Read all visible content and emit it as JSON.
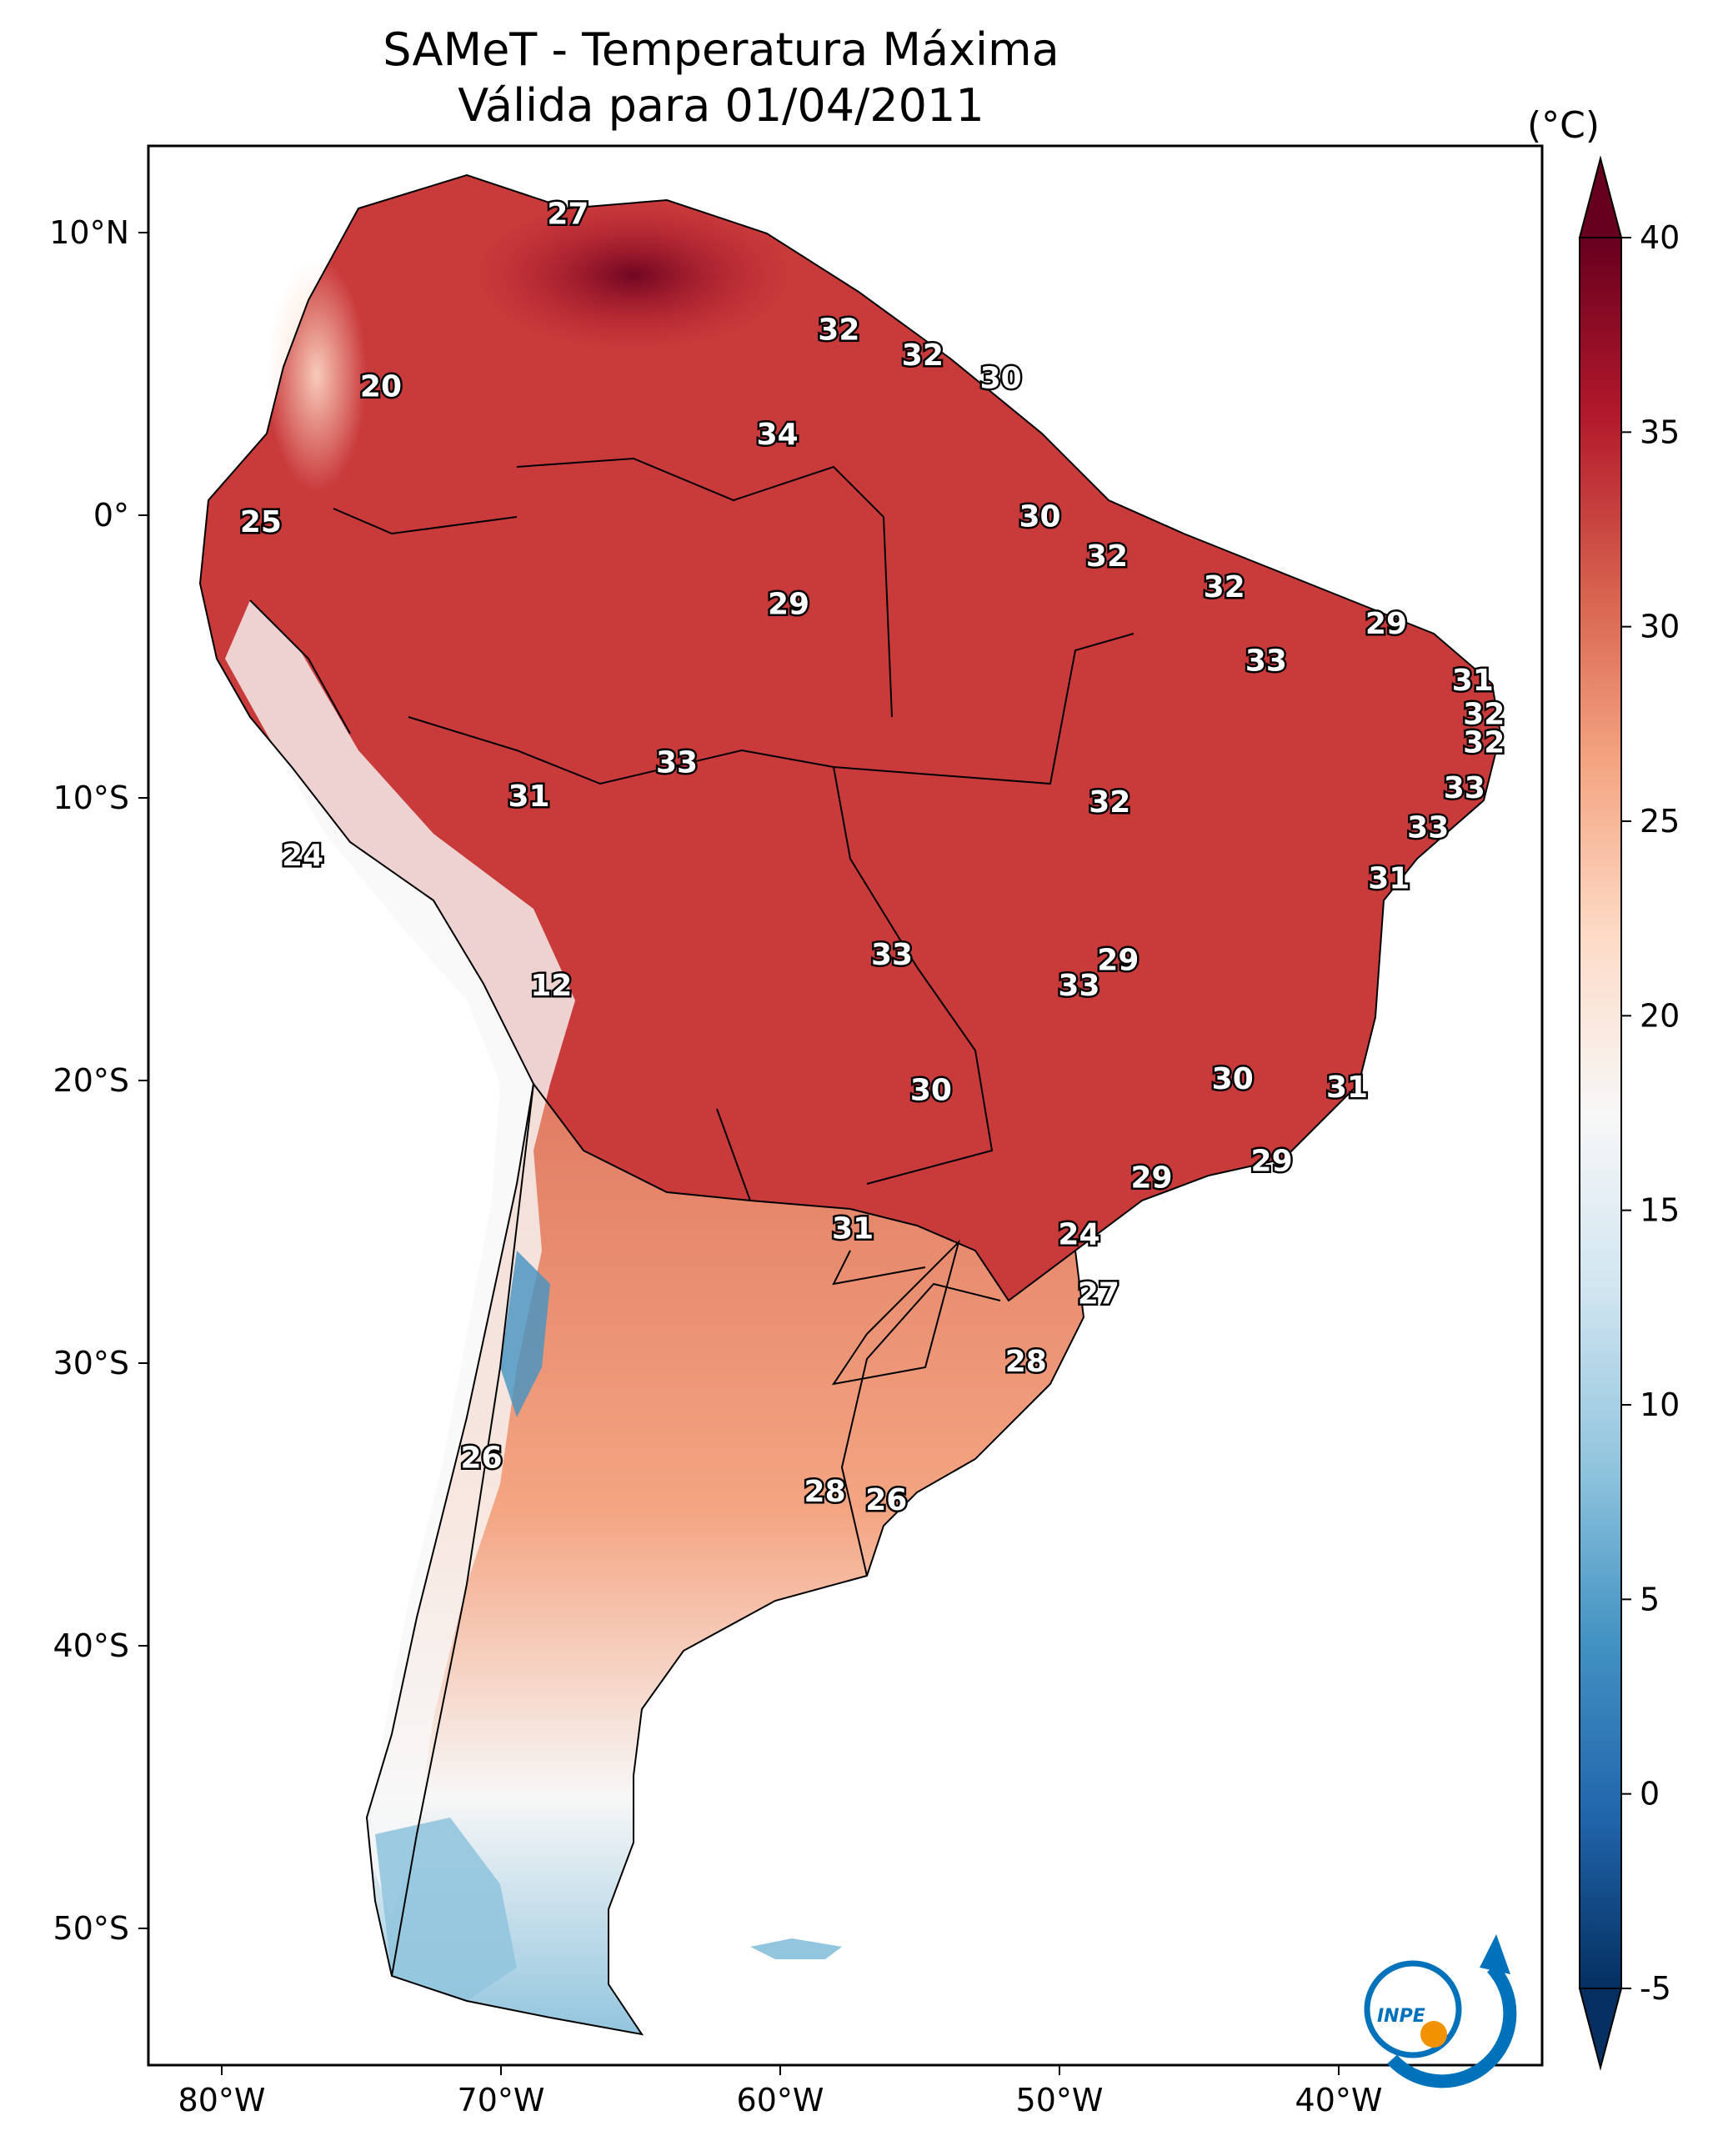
{
  "title": {
    "line1": "SAMeT - Temperatura Máxima",
    "line2": "Válida para 01/04/2011"
  },
  "colorbar": {
    "unit": "(°C)",
    "min": -5,
    "max": 40,
    "ticks": [
      "40",
      "35",
      "30",
      "25",
      "20",
      "15",
      "10",
      "5",
      "0",
      "-5"
    ],
    "colors": [
      "#67001f",
      "#b2182b",
      "#d6604d",
      "#f4a582",
      "#fddbc7",
      "#f7f7f7",
      "#d1e5f0",
      "#92c5de",
      "#4393c3",
      "#2166ac",
      "#053061"
    ]
  },
  "axes": {
    "lat_labels": [
      "10°N",
      "0°",
      "10°S",
      "20°S",
      "30°S",
      "40°S",
      "50°S"
    ],
    "lon_labels": [
      "80°W",
      "70°W",
      "60°W",
      "50°W",
      "40°W"
    ]
  },
  "logo": {
    "text": "INPE",
    "accent": "#f39200",
    "brand": "#0072bc"
  },
  "station_labels": [
    {
      "value": "27",
      "lon": -67.6,
      "lat": 10.6
    },
    {
      "value": "32",
      "lon": -57.9,
      "lat": 6.5
    },
    {
      "value": "32",
      "lon": -54.9,
      "lat": 5.6
    },
    {
      "value": "30",
      "lon": -52.1,
      "lat": 4.8
    },
    {
      "value": "20",
      "lon": -74.3,
      "lat": 4.5
    },
    {
      "value": "34",
      "lon": -60.1,
      "lat": 2.8
    },
    {
      "value": "30",
      "lon": -50.7,
      "lat": -0.1
    },
    {
      "value": "25",
      "lon": -78.6,
      "lat": -0.3
    },
    {
      "value": "32",
      "lon": -48.3,
      "lat": -1.5
    },
    {
      "value": "32",
      "lon": -44.1,
      "lat": -2.6
    },
    {
      "value": "29",
      "lon": -59.7,
      "lat": -3.2
    },
    {
      "value": "29",
      "lon": -38.3,
      "lat": -3.9
    },
    {
      "value": "33",
      "lon": -42.6,
      "lat": -5.2
    },
    {
      "value": "31",
      "lon": -35.2,
      "lat": -5.9
    },
    {
      "value": "32",
      "lon": -34.8,
      "lat": -7.1
    },
    {
      "value": "32",
      "lon": -34.8,
      "lat": -8.1
    },
    {
      "value": "33",
      "lon": -63.7,
      "lat": -8.8
    },
    {
      "value": "33",
      "lon": -35.5,
      "lat": -9.7
    },
    {
      "value": "31",
      "lon": -69.0,
      "lat": -10.0
    },
    {
      "value": "32",
      "lon": -48.2,
      "lat": -10.2
    },
    {
      "value": "33",
      "lon": -36.8,
      "lat": -11.1
    },
    {
      "value": "24",
      "lon": -77.1,
      "lat": -12.1
    },
    {
      "value": "31",
      "lon": -38.2,
      "lat": -12.9
    },
    {
      "value": "33",
      "lon": -56.0,
      "lat": -15.6
    },
    {
      "value": "29",
      "lon": -47.9,
      "lat": -15.8
    },
    {
      "value": "33",
      "lon": -49.3,
      "lat": -16.7
    },
    {
      "value": "12",
      "lon": -68.2,
      "lat": -16.7
    },
    {
      "value": "30",
      "lon": -43.8,
      "lat": -20.0
    },
    {
      "value": "30",
      "lon": -54.6,
      "lat": -20.4
    },
    {
      "value": "31",
      "lon": -39.7,
      "lat": -20.3
    },
    {
      "value": "29",
      "lon": -42.4,
      "lat": -22.9
    },
    {
      "value": "29",
      "lon": -46.7,
      "lat": -23.5
    },
    {
      "value": "31",
      "lon": -57.4,
      "lat": -25.3
    },
    {
      "value": "24",
      "lon": -49.3,
      "lat": -25.5
    },
    {
      "value": "27",
      "lon": -48.6,
      "lat": -27.6
    },
    {
      "value": "28",
      "lon": -51.2,
      "lat": -30.0
    },
    {
      "value": "26",
      "lon": -70.7,
      "lat": -33.4
    },
    {
      "value": "28",
      "lon": -58.4,
      "lat": -34.6
    },
    {
      "value": "26",
      "lon": -56.2,
      "lat": -34.9
    }
  ]
}
